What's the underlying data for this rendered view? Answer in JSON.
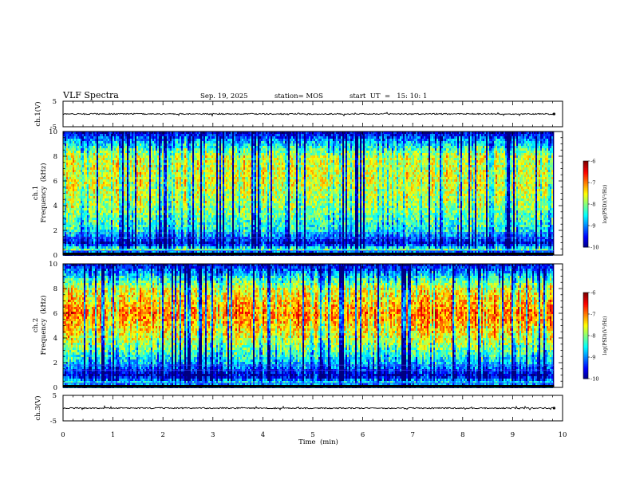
{
  "header": {
    "title": "VLF Spectra",
    "date": "Sep. 19, 2025",
    "station": "station= MOS",
    "start": "start  UT  =   15: 10: 1"
  },
  "chart_data": [
    {
      "type": "line",
      "name": "ch1-voltage",
      "ylabel": "ch.1(V)",
      "ylim": [
        -5,
        5
      ],
      "yticks": [
        "5",
        "-5"
      ],
      "x_range_min": [
        0,
        9.83
      ],
      "series": [
        {
          "name": "ch.1",
          "approx_value": 0
        }
      ]
    },
    {
      "type": "heatmap",
      "name": "ch1-spectrogram",
      "ylabel_top": "ch.1",
      "ylabel_bottom": "Frequency  (kHz)",
      "ylim": [
        0,
        10
      ],
      "yticks": [
        "0",
        "2",
        "4",
        "6",
        "8",
        "10"
      ],
      "x_range_min": [
        0,
        9.83
      ],
      "colorbar": {
        "label": "log(PSD)(V²/Hz)",
        "range": [
          -10,
          -6
        ],
        "ticks": [
          "-6",
          "-7",
          "-8",
          "-9",
          "-10"
        ]
      },
      "profile_khz_log_psd": [
        {
          "f": 0.2,
          "v": -9.5
        },
        {
          "f": 0.5,
          "v": -8.0
        },
        {
          "f": 1.0,
          "v": -9.6
        },
        {
          "f": 2.0,
          "v": -8.5
        },
        {
          "f": 4.0,
          "v": -7.9
        },
        {
          "f": 6.0,
          "v": -7.6
        },
        {
          "f": 8.0,
          "v": -7.7
        },
        {
          "f": 9.0,
          "v": -8.6
        },
        {
          "f": 10.0,
          "v": -9.7
        }
      ]
    },
    {
      "type": "heatmap",
      "name": "ch2-spectrogram",
      "ylabel_top": "ch.2",
      "ylabel_bottom": "Frequency  (kHz)",
      "ylim": [
        0,
        10
      ],
      "yticks": [
        "0",
        "2",
        "4",
        "6",
        "8",
        "10"
      ],
      "x_range_min": [
        0,
        9.83
      ],
      "colorbar": {
        "label": "log(PSD)(V²/Hz)",
        "range": [
          -10,
          -6
        ],
        "ticks": [
          "-6",
          "-7",
          "-8",
          "-9",
          "-10"
        ]
      },
      "profile_khz_log_psd": [
        {
          "f": 0.2,
          "v": -9.0
        },
        {
          "f": 0.5,
          "v": -8.6
        },
        {
          "f": 1.0,
          "v": -9.7
        },
        {
          "f": 2.0,
          "v": -8.7
        },
        {
          "f": 4.0,
          "v": -7.6
        },
        {
          "f": 6.0,
          "v": -6.9
        },
        {
          "f": 8.0,
          "v": -7.6
        },
        {
          "f": 9.0,
          "v": -8.5
        },
        {
          "f": 10.0,
          "v": -9.7
        }
      ]
    },
    {
      "type": "line",
      "name": "ch3-voltage",
      "ylabel": "ch.3(V)",
      "ylim": [
        -5,
        5
      ],
      "yticks": [
        "5",
        "-5"
      ],
      "x_range_min": [
        0,
        9.83
      ],
      "series": [
        {
          "name": "ch.3",
          "approx_value": 0
        }
      ]
    }
  ],
  "xaxis": {
    "label": "Time  (min)",
    "range": [
      0,
      10
    ],
    "ticks": [
      "0",
      "1",
      "2",
      "3",
      "4",
      "5",
      "6",
      "7",
      "8",
      "9",
      "10"
    ]
  },
  "colors": {
    "jet": [
      "#00007f",
      "#0000ff",
      "#007fff",
      "#00ffff",
      "#7fff7f",
      "#ffff00",
      "#ff7f00",
      "#ff0000",
      "#7f0000"
    ],
    "axis": "#000000",
    "background": "#ffffff"
  }
}
